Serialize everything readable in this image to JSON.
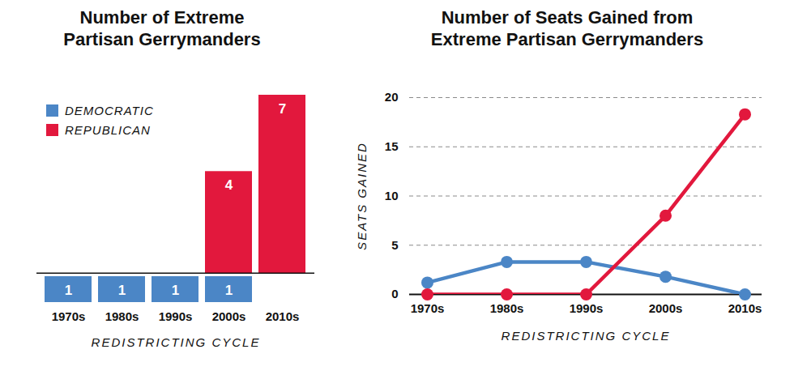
{
  "chart_data": [
    {
      "type": "bar",
      "title": "Number of Extreme Partisan Gerrymanders",
      "x_label": "REDISTRICTING CYCLE",
      "categories": [
        "1970s",
        "1980s",
        "1990s",
        "2000s",
        "2010s"
      ],
      "series": [
        {
          "name": "DEMOCRATIC",
          "color": "#4b86c6",
          "values": [
            1,
            1,
            1,
            1,
            null
          ]
        },
        {
          "name": "REPUBLICAN",
          "color": "#e2183d",
          "values": [
            null,
            null,
            null,
            4,
            7
          ]
        }
      ],
      "data_labels": true,
      "legend": "top-left",
      "tick_labels": "x"
    },
    {
      "type": "line",
      "title": "Number of Seats Gained from Extreme Partisan Gerrymanders",
      "x_label": "REDISTRICTING CYCLE",
      "y_label": "SEATS GAINED",
      "categories": [
        "1970s",
        "1980s",
        "1990s",
        "2000s",
        "2010s"
      ],
      "series": [
        {
          "color": "#4b86c6",
          "values": [
            1.2,
            3.3,
            3.3,
            1.8,
            0
          ]
        },
        {
          "color": "#e2183d",
          "values": [
            0,
            0,
            0,
            8,
            18.3
          ]
        }
      ],
      "ylim": [
        0,
        20
      ],
      "yticks": [
        0,
        5,
        10,
        15,
        20
      ],
      "grid": true,
      "marker": "circle"
    }
  ]
}
